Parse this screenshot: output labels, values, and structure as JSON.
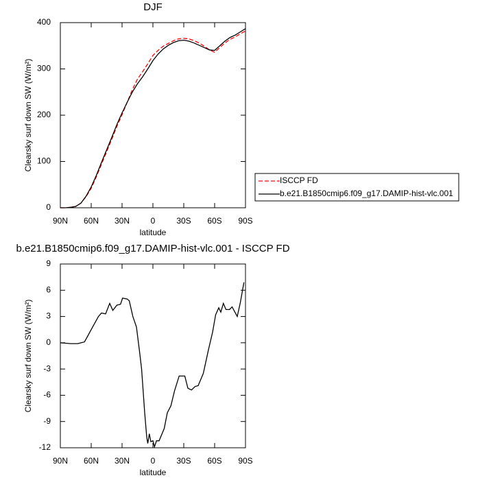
{
  "chart_data": [
    {
      "type": "line",
      "title": "DJF",
      "xlabel": "latitude",
      "ylabel": "Clearsky surf down SW (W/m²)",
      "x": [
        90,
        85,
        80,
        75,
        70,
        65,
        60,
        55,
        50,
        45,
        40,
        35,
        30,
        25,
        20,
        15,
        10,
        5,
        0,
        -5,
        -10,
        -15,
        -20,
        -25,
        -30,
        -35,
        -40,
        -45,
        -50,
        -55,
        -60,
        -65,
        -70,
        -75,
        -80,
        -85,
        -90
      ],
      "series": [
        {
          "name": "ISCCP FD",
          "color": "#ff0000",
          "dash": true,
          "values": [
            0,
            0,
            1,
            3,
            10,
            24,
            42,
            67,
            94,
            121,
            148,
            176,
            201,
            228,
            255,
            278,
            294,
            311,
            329,
            340,
            349,
            355,
            361,
            365,
            366,
            365,
            361,
            356,
            349,
            341,
            336,
            346,
            356,
            364,
            369,
            376,
            382
          ]
        },
        {
          "name": "b.e21.B1850cmip6.f09_g17.DAMIP-hist-vlc.001",
          "color": "#000000",
          "dash": false,
          "values": [
            0,
            0,
            1,
            3,
            10,
            25,
            45,
            70,
            98,
            125,
            152,
            180,
            205,
            228,
            250,
            268,
            283,
            300,
            318,
            332,
            343,
            351,
            357,
            361,
            362,
            360,
            356,
            351,
            346,
            341,
            340,
            350,
            360,
            368,
            373,
            380,
            387
          ]
        }
      ],
      "xlim": [
        90,
        -90
      ],
      "ylim": [
        0,
        400
      ],
      "xticks": [
        {
          "value": 90,
          "label": "90N"
        },
        {
          "value": 60,
          "label": "60N"
        },
        {
          "value": 30,
          "label": "30N"
        },
        0,
        {
          "value": -30,
          "label": "30S"
        },
        {
          "value": -60,
          "label": "60S"
        },
        {
          "value": -90,
          "label": "90S"
        }
      ],
      "yticks": [
        0,
        100,
        200,
        300,
        400
      ],
      "legend": "right"
    },
    {
      "type": "line",
      "title": "b.e21.B1850cmip6.f09_g17.DAMIP-hist-vlc.001 - ISCCP FD",
      "xlabel": "latitude",
      "ylabel": "Clearsky surf down SW (W/m²)",
      "x": [
        90,
        80,
        73,
        66.5,
        60,
        53,
        50,
        46,
        42,
        39,
        35,
        31.5,
        29.5,
        25,
        23,
        19.5,
        16,
        13,
        11,
        8,
        6,
        5,
        3.5,
        2,
        0,
        -1.5,
        -3.5,
        -6,
        -11,
        -14,
        -17.5,
        -21,
        -25.5,
        -31,
        -34,
        -37.5,
        -41,
        -44,
        -49,
        -54,
        -58,
        -61,
        -64,
        -66,
        -68.5,
        -71,
        -74.5,
        -77,
        -82,
        -85,
        -88.5
      ],
      "series": [
        {
          "color": "#000000",
          "dash": false,
          "values": [
            0,
            -0.1,
            -0.1,
            0.1,
            1.5,
            3.0,
            3.4,
            3.3,
            4.5,
            3.7,
            4.3,
            4.4,
            5.1,
            5.0,
            4.8,
            3,
            1.8,
            -1,
            -3,
            -8,
            -10.8,
            -11.5,
            -10.4,
            -11.3,
            -11.2,
            -11.9,
            -11.2,
            -11.2,
            -9.8,
            -8,
            -7.2,
            -5.5,
            -3.8,
            -3.8,
            -5.2,
            -5.4,
            -5,
            -4.9,
            -3.5,
            -0.8,
            1.2,
            3.2,
            4,
            3.5,
            4.5,
            3.8,
            3.8,
            4.1,
            3.0,
            4.6,
            6.9
          ]
        }
      ],
      "xlim": [
        90,
        -90
      ],
      "ylim": [
        -12,
        9
      ],
      "xticks": [
        {
          "value": 90,
          "label": "90N"
        },
        {
          "value": 60,
          "label": "60N"
        },
        {
          "value": 30,
          "label": "30N"
        },
        0,
        {
          "value": -30,
          "label": "30S"
        },
        {
          "value": -60,
          "label": "60S"
        },
        {
          "value": -90,
          "label": "90S"
        }
      ],
      "yticks": [
        -12,
        -9,
        -6,
        -3,
        0,
        3,
        6,
        9
      ]
    }
  ]
}
